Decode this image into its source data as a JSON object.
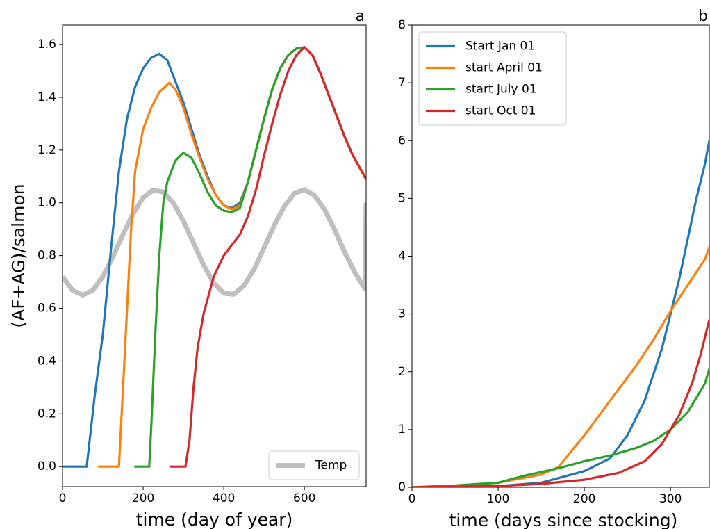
{
  "chart_data": [
    {
      "type": "line",
      "title": "a",
      "xlabel": "time (day of year)",
      "ylabel": "(AF+AG)/salmon",
      "xlim": [
        0,
        753
      ],
      "ylim": [
        -0.076,
        1.674
      ],
      "xticks": [
        0,
        200,
        400,
        600
      ],
      "yticks": [
        {
          "value": 0,
          "label": "0.0"
        },
        0.2,
        0.4,
        0.6,
        0.8,
        {
          "value": 1,
          "label": "1.0"
        },
        1.2,
        1.4,
        1.6
      ],
      "legend": "lower right",
      "series": [
        {
          "name": "Temp",
          "color": "#bfbfbf",
          "x": [
            0,
            25,
            50,
            75,
            100,
            125,
            150,
            175,
            200,
            225,
            250,
            275,
            300,
            325,
            350,
            375,
            400,
            425,
            450,
            475,
            500,
            525,
            550,
            575,
            600,
            625,
            650,
            675,
            700,
            725,
            750,
            753
          ],
          "values": [
            0.72,
            0.668,
            0.65,
            0.668,
            0.72,
            0.795,
            0.88,
            0.959,
            1.02,
            1.048,
            1.041,
            0.999,
            0.93,
            0.847,
            0.764,
            0.696,
            0.657,
            0.653,
            0.686,
            0.748,
            0.83,
            0.914,
            0.986,
            1.036,
            1.05,
            1.028,
            0.974,
            0.898,
            0.812,
            0.736,
            0.674,
            1.0
          ]
        },
        {
          "color": "#1f77b4",
          "x": [
            0,
            60,
            80,
            100,
            120,
            140,
            160,
            180,
            200,
            220,
            240,
            260,
            280,
            300,
            320,
            340,
            360,
            380,
            400,
            420,
            440,
            460,
            480,
            500,
            520,
            540,
            560,
            580,
            600,
            620,
            640,
            660,
            680,
            700,
            720,
            753
          ],
          "values": [
            0,
            0,
            0.27,
            0.5,
            0.82,
            1.12,
            1.32,
            1.44,
            1.51,
            1.55,
            1.565,
            1.54,
            1.46,
            1.38,
            1.28,
            1.18,
            1.1,
            1.03,
            0.99,
            0.98,
            1.0,
            1.08,
            1.2,
            1.32,
            1.43,
            1.51,
            1.56,
            1.585,
            1.59,
            1.56,
            1.49,
            1.41,
            1.33,
            1.25,
            1.18,
            1.09
          ]
        },
        {
          "color": "#ff7f0e",
          "x": [
            88,
            140,
            150,
            160,
            170,
            180,
            200,
            220,
            240,
            265,
            280,
            300,
            320,
            340,
            360,
            380,
            400,
            420,
            440,
            460,
            480,
            500,
            520,
            540,
            560,
            580,
            600,
            620,
            640,
            660,
            680,
            700,
            720,
            753
          ],
          "values": [
            0,
            0,
            0.3,
            0.6,
            0.9,
            1.12,
            1.28,
            1.36,
            1.42,
            1.455,
            1.43,
            1.36,
            1.26,
            1.17,
            1.09,
            1.03,
            0.99,
            0.975,
            0.99,
            1.08,
            1.2,
            1.32,
            1.43,
            1.51,
            1.56,
            1.585,
            1.59,
            1.56,
            1.49,
            1.41,
            1.33,
            1.25,
            1.18,
            1.09
          ]
        },
        {
          "color": "#2ca02c",
          "x": [
            178,
            215,
            220,
            230,
            240,
            250,
            260,
            280,
            300,
            320,
            340,
            360,
            380,
            400,
            420,
            440,
            460,
            480,
            500,
            520,
            540,
            560,
            580,
            600,
            620,
            640,
            660,
            680,
            700,
            720,
            753
          ],
          "values": [
            0,
            0,
            0.15,
            0.5,
            0.8,
            1.0,
            1.08,
            1.16,
            1.19,
            1.17,
            1.11,
            1.04,
            0.99,
            0.97,
            0.965,
            0.98,
            1.08,
            1.2,
            1.32,
            1.43,
            1.51,
            1.56,
            1.585,
            1.59,
            1.56,
            1.49,
            1.41,
            1.33,
            1.25,
            1.18,
            1.09
          ]
        },
        {
          "color": "#d62728",
          "x": [
            265,
            305,
            315,
            325,
            335,
            350,
            375,
            400,
            420,
            440,
            460,
            480,
            500,
            520,
            540,
            560,
            580,
            600,
            620,
            640,
            660,
            680,
            700,
            720,
            753
          ],
          "values": [
            0,
            0,
            0.1,
            0.3,
            0.45,
            0.58,
            0.72,
            0.8,
            0.84,
            0.88,
            0.95,
            1.05,
            1.18,
            1.3,
            1.41,
            1.5,
            1.56,
            1.59,
            1.56,
            1.49,
            1.41,
            1.33,
            1.25,
            1.18,
            1.09
          ]
        }
      ]
    },
    {
      "type": "line",
      "title": "b",
      "xlabel": "time (days since stocking)",
      "xlim": [
        0,
        345
      ],
      "ylim": [
        0,
        8
      ],
      "xticks": [
        0,
        100,
        200,
        300
      ],
      "yticks": [
        0,
        1,
        2,
        3,
        4,
        5,
        6,
        7,
        8
      ],
      "legend": "upper left",
      "series": [
        {
          "name": "Start Jan 01",
          "color": "#1f77b4",
          "x": [
            0,
            100,
            150,
            200,
            230,
            250,
            270,
            290,
            300,
            310,
            320,
            330,
            340,
            345
          ],
          "values": [
            0,
            0.02,
            0.08,
            0.28,
            0.5,
            0.9,
            1.5,
            2.4,
            3.0,
            3.6,
            4.3,
            5.0,
            5.6,
            6.0
          ]
        },
        {
          "name": "start April 01",
          "color": "#ff7f0e",
          "x": [
            0,
            50,
            100,
            150,
            170,
            200,
            230,
            260,
            280,
            300,
            320,
            340,
            345
          ],
          "values": [
            0,
            0.03,
            0.08,
            0.22,
            0.35,
            0.9,
            1.5,
            2.1,
            2.55,
            3.05,
            3.5,
            3.95,
            4.15
          ]
        },
        {
          "name": "start July 01",
          "color": "#2ca02c",
          "x": [
            0,
            50,
            100,
            130,
            170,
            200,
            230,
            260,
            280,
            300,
            320,
            340,
            345
          ],
          "values": [
            0,
            0.03,
            0.08,
            0.2,
            0.33,
            0.45,
            0.55,
            0.68,
            0.8,
            1.0,
            1.3,
            1.8,
            2.05
          ]
        },
        {
          "name": "start Oct 01",
          "color": "#d62728",
          "x": [
            0,
            100,
            150,
            200,
            240,
            270,
            290,
            310,
            325,
            335,
            345
          ],
          "values": [
            0,
            0.02,
            0.06,
            0.13,
            0.25,
            0.45,
            0.75,
            1.25,
            1.8,
            2.3,
            2.9
          ]
        }
      ]
    }
  ]
}
